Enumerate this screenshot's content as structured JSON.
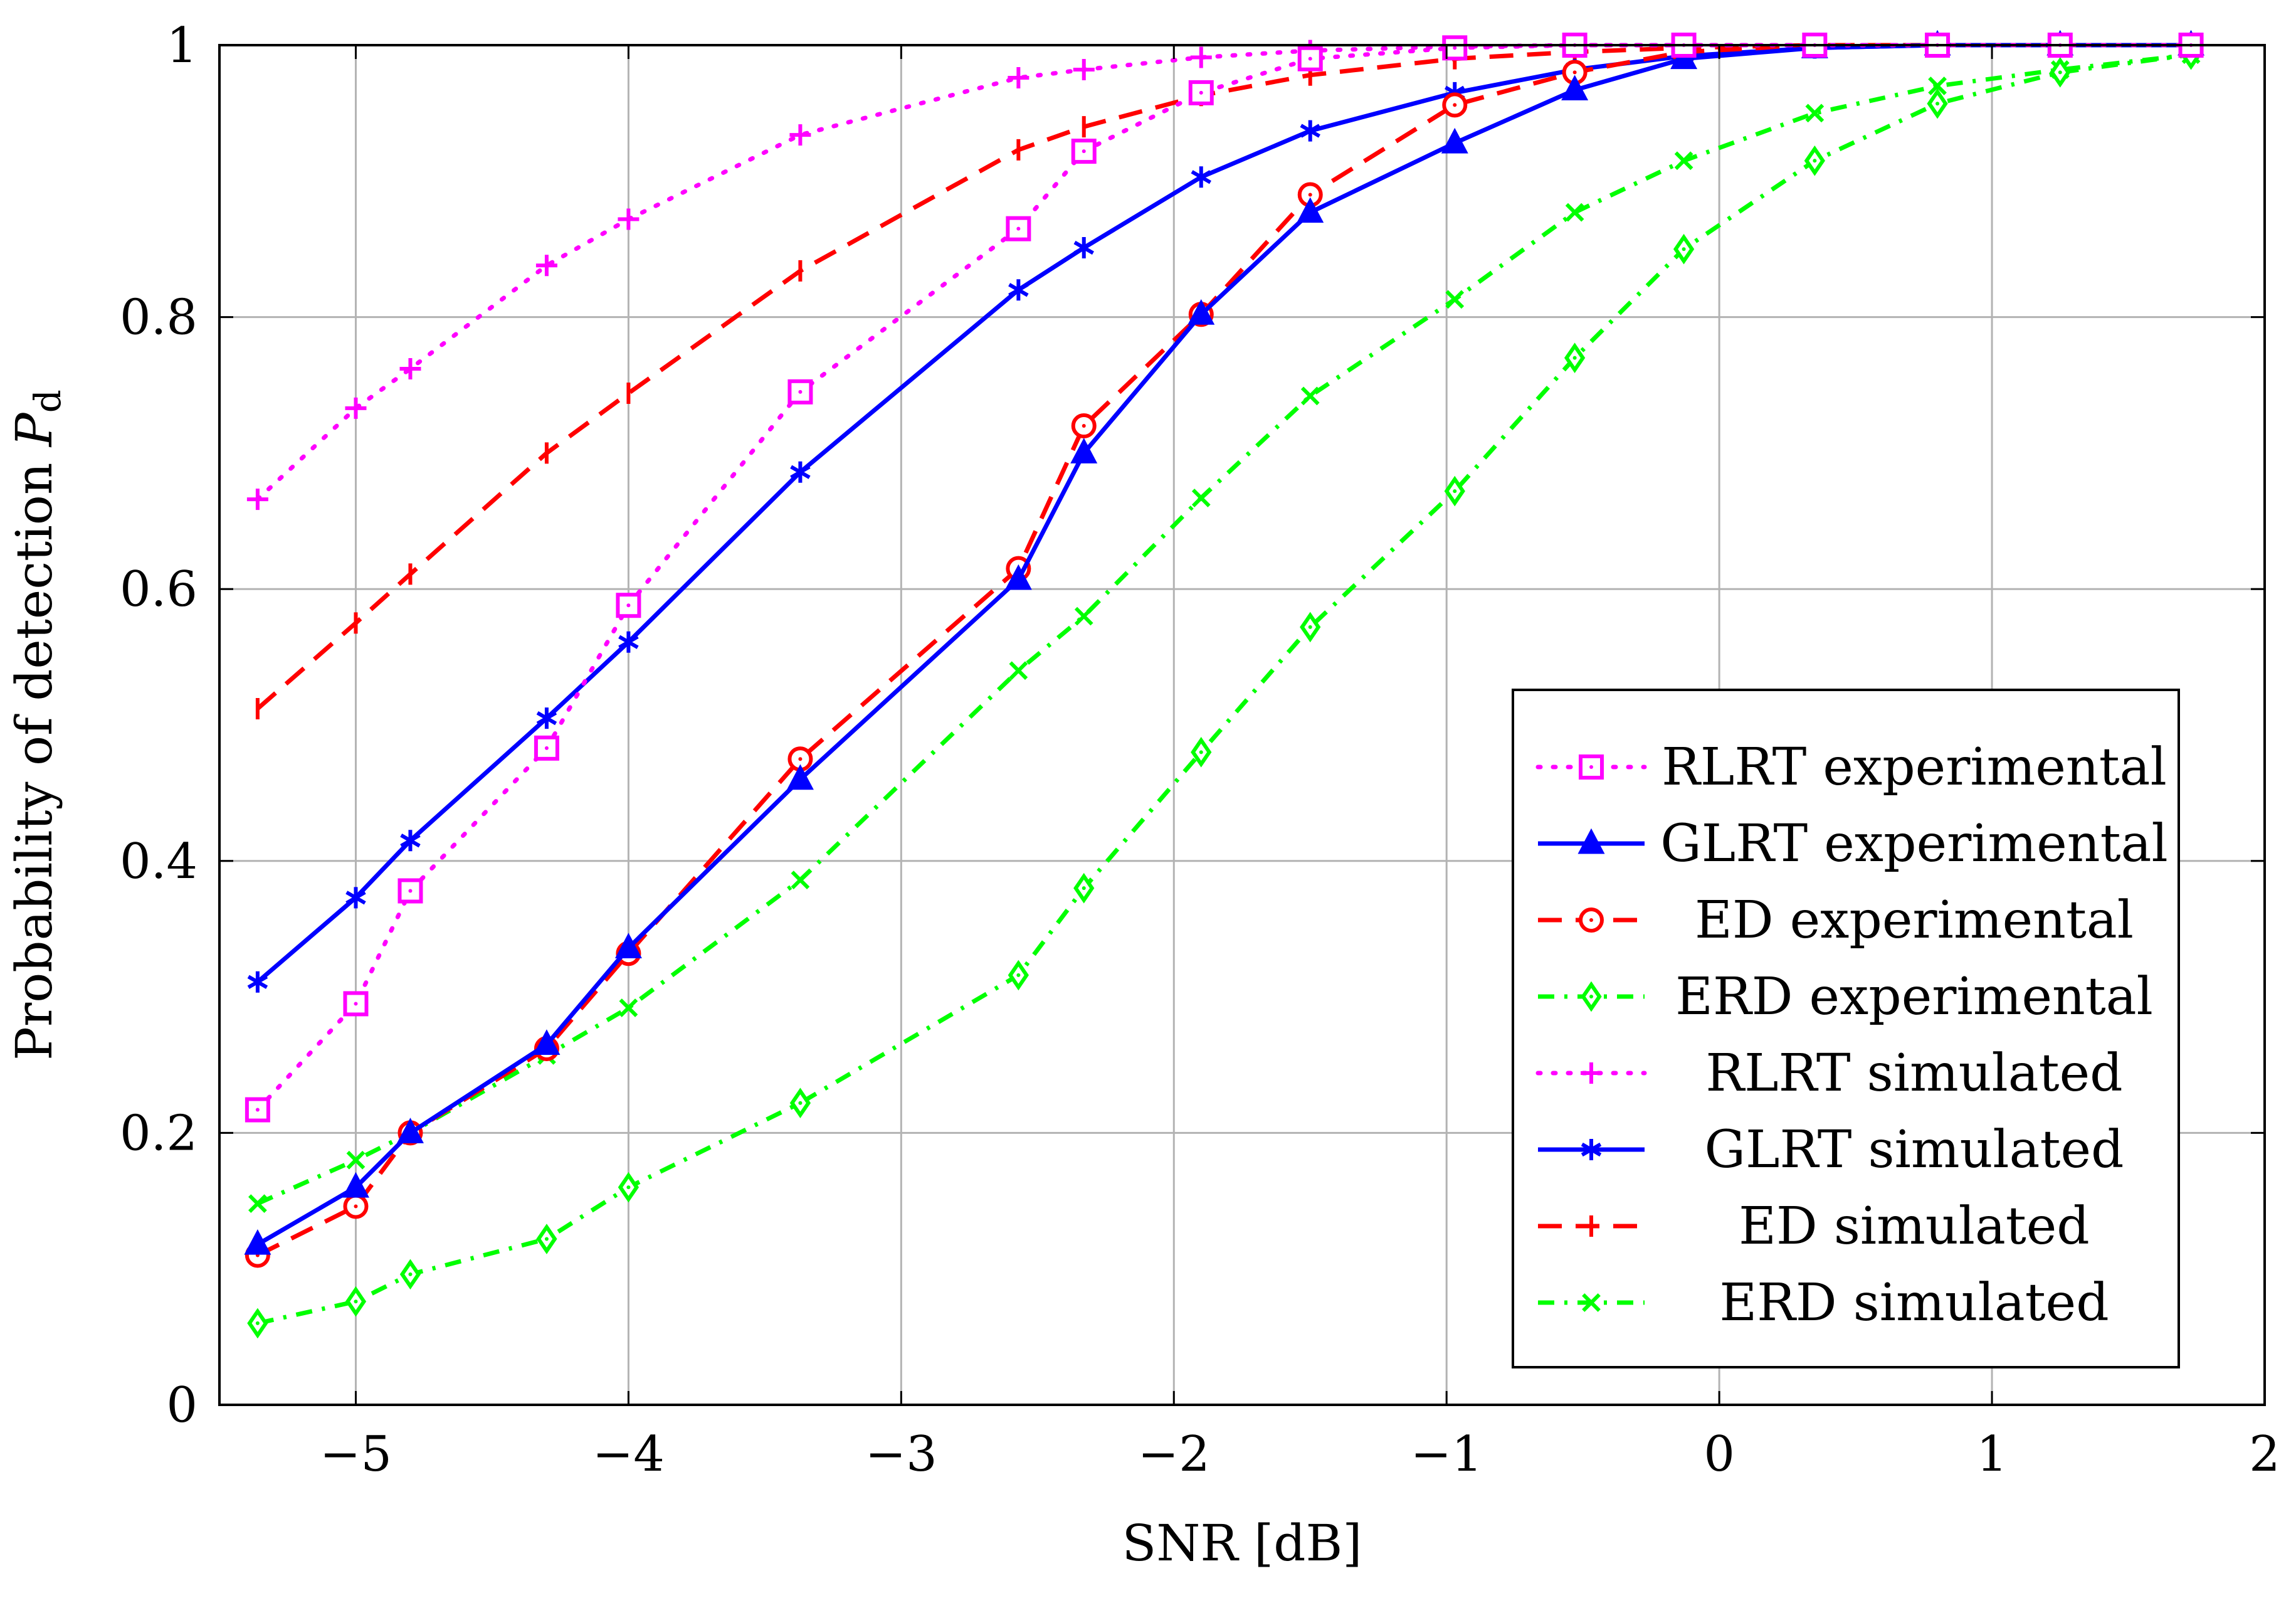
{
  "chart_data": {
    "type": "line",
    "title": "",
    "xlabel": "SNR [dB]",
    "ylabel_main": "Probability of detection ",
    "ylabel_symbol": "P",
    "ylabel_subscript": "d",
    "xlim": [
      -5.5,
      2
    ],
    "ylim": [
      0,
      1
    ],
    "grid": true,
    "legend_position": "bottom-right",
    "x_ticks": [
      -5,
      -4,
      -3,
      -2,
      -1,
      0,
      1,
      2
    ],
    "x_tick_labels": [
      "−5",
      "−4",
      "−3",
      "−2",
      "−1",
      "0",
      "1",
      "2"
    ],
    "y_ticks": [
      0,
      0.2,
      0.4,
      0.6,
      0.8,
      1
    ],
    "y_tick_labels": [
      "0",
      "0.2",
      "0.4",
      "0.6",
      "0.8",
      "1"
    ],
    "series": [
      {
        "name": "RLRT experimental",
        "color": "#ff00ff",
        "dash": "dotted",
        "marker": "square",
        "x": [
          -5.36,
          -5.0,
          -4.8,
          -4.3,
          -4.0,
          -3.37,
          -2.57,
          -2.33,
          -1.9,
          -1.5,
          -0.97,
          -0.53,
          -0.13,
          0.35,
          0.8,
          1.25,
          1.73
        ],
        "y": [
          0.217,
          0.295,
          0.378,
          0.483,
          0.588,
          0.745,
          0.865,
          0.922,
          0.965,
          0.99,
          0.998,
          1.0,
          1.0,
          1.0,
          1.0,
          1.0,
          1.0
        ]
      },
      {
        "name": "GLRT experimental",
        "color": "#0000ff",
        "dash": "solid",
        "marker": "triangle",
        "x": [
          -5.36,
          -5.0,
          -4.8,
          -4.3,
          -4.0,
          -3.37,
          -2.57,
          -2.33,
          -1.9,
          -1.5,
          -0.97,
          -0.53,
          -0.13,
          0.35,
          0.8,
          1.25,
          1.73
        ],
        "y": [
          0.118,
          0.16,
          0.2,
          0.265,
          0.336,
          0.46,
          0.607,
          0.7,
          0.802,
          0.877,
          0.928,
          0.967,
          0.99,
          0.998,
          1.0,
          1.0,
          1.0
        ]
      },
      {
        "name": "ED experimental",
        "color": "#ff0000",
        "dash": "dashed",
        "marker": "circle",
        "x": [
          -5.36,
          -5.0,
          -4.8,
          -4.3,
          -4.0,
          -3.37,
          -2.57,
          -2.33,
          -1.9,
          -1.5,
          -0.97,
          -0.53,
          -0.13,
          0.35,
          0.8,
          1.25,
          1.73
        ],
        "y": [
          0.11,
          0.146,
          0.2,
          0.262,
          0.332,
          0.475,
          0.615,
          0.72,
          0.802,
          0.89,
          0.956,
          0.98,
          0.995,
          1.0,
          1.0,
          1.0,
          1.0
        ]
      },
      {
        "name": "ERD experimental",
        "color": "#00ff00",
        "dash": "dashdot",
        "marker": "diamond",
        "x": [
          -5.36,
          -5.0,
          -4.8,
          -4.3,
          -4.0,
          -3.37,
          -2.57,
          -2.33,
          -1.9,
          -1.5,
          -0.97,
          -0.53,
          -0.13,
          0.35,
          0.8,
          1.25,
          1.73
        ],
        "y": [
          0.06,
          0.076,
          0.096,
          0.122,
          0.16,
          0.222,
          0.316,
          0.38,
          0.48,
          0.572,
          0.672,
          0.77,
          0.85,
          0.915,
          0.957,
          0.98,
          0.993
        ]
      },
      {
        "name": "RLRT simulated",
        "color": "#ff00ff",
        "dash": "dotted",
        "marker": "plus",
        "x": [
          -5.36,
          -5.0,
          -4.8,
          -4.3,
          -4.0,
          -3.37,
          -2.57,
          -2.33,
          -1.9,
          -1.5,
          -0.97,
          -0.53,
          -0.13,
          0.35,
          0.8,
          1.25,
          1.73
        ],
        "y": [
          0.666,
          0.733,
          0.762,
          0.838,
          0.872,
          0.934,
          0.976,
          0.982,
          0.991,
          0.996,
          0.999,
          1.0,
          1.0,
          1.0,
          1.0,
          1.0,
          1.0
        ]
      },
      {
        "name": "GLRT simulated",
        "color": "#0000ff",
        "dash": "solid",
        "marker": "asterisk",
        "x": [
          -5.36,
          -5.0,
          -4.8,
          -4.3,
          -4.0,
          -3.37,
          -2.57,
          -2.33,
          -1.9,
          -1.5,
          -0.97,
          -0.53,
          -0.13,
          0.35,
          0.8,
          1.25,
          1.73
        ],
        "y": [
          0.311,
          0.373,
          0.415,
          0.505,
          0.561,
          0.686,
          0.82,
          0.851,
          0.903,
          0.937,
          0.965,
          0.982,
          0.992,
          0.998,
          1.0,
          1.0,
          1.0
        ]
      },
      {
        "name": "ED simulated",
        "color": "#ff0000",
        "dash": "dashed",
        "marker": "tick",
        "x": [
          -5.36,
          -5.0,
          -4.8,
          -4.3,
          -4.0,
          -3.37,
          -2.57,
          -2.33,
          -1.9,
          -1.5,
          -0.97,
          -0.53,
          -0.13,
          0.35,
          0.8,
          1.25,
          1.73
        ],
        "y": [
          0.512,
          0.575,
          0.611,
          0.7,
          0.744,
          0.834,
          0.923,
          0.94,
          0.963,
          0.978,
          0.99,
          0.995,
          0.998,
          1.0,
          1.0,
          1.0,
          1.0
        ]
      },
      {
        "name": "ERD simulated",
        "color": "#00ff00",
        "dash": "dashdot",
        "marker": "x",
        "x": [
          -5.36,
          -5.0,
          -4.8,
          -4.3,
          -4.0,
          -3.37,
          -2.57,
          -2.33,
          -1.9,
          -1.5,
          -0.97,
          -0.53,
          -0.13,
          0.35,
          0.8,
          1.25,
          1.73
        ],
        "y": [
          0.148,
          0.18,
          0.2,
          0.257,
          0.292,
          0.386,
          0.54,
          0.58,
          0.667,
          0.742,
          0.813,
          0.877,
          0.915,
          0.95,
          0.97,
          0.982,
          0.993
        ]
      }
    ]
  }
}
